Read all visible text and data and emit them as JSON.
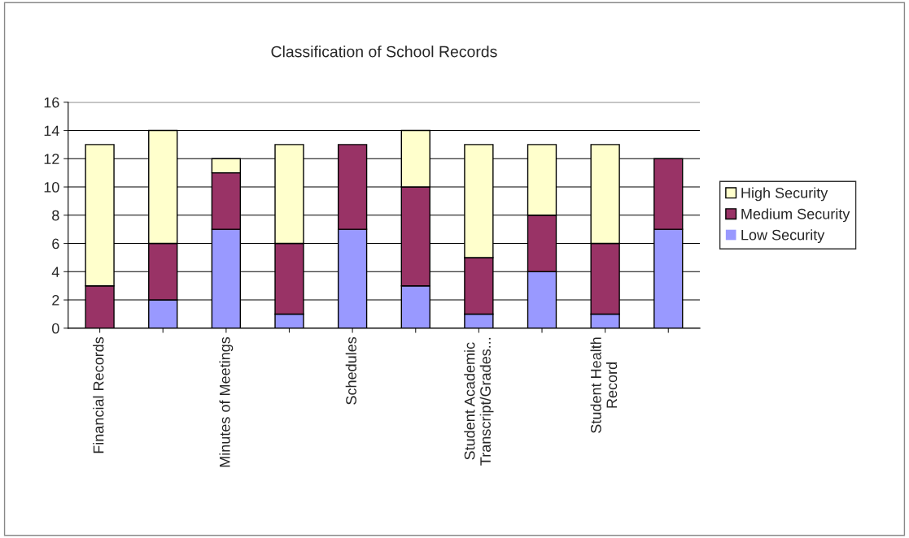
{
  "chart_data": {
    "type": "bar",
    "title": "Classification of School Records",
    "stacked": true,
    "categories": [
      "Financial Records",
      null,
      "Minutes of Meetings",
      null,
      "Schedules",
      null,
      "Student Academic\nTranscript/Grades...",
      null,
      "Student Health\nRecord",
      null
    ],
    "series": [
      {
        "name": "Low Security",
        "color": "#9999ff",
        "values": [
          0,
          2,
          7,
          1,
          7,
          3,
          1,
          4,
          1,
          7
        ]
      },
      {
        "name": "Medium Security",
        "color": "#993366",
        "values": [
          3,
          4,
          4,
          5,
          6,
          7,
          4,
          4,
          5,
          5
        ]
      },
      {
        "name": "High Security",
        "color": "#ffffcc",
        "values": [
          10,
          8,
          1,
          7,
          0,
          4,
          8,
          5,
          7,
          0
        ]
      }
    ],
    "ylim": [
      0,
      16
    ],
    "yticks": [
      0,
      2,
      4,
      6,
      8,
      10,
      12,
      14,
      16
    ],
    "grid": "y",
    "legend": "right"
  }
}
